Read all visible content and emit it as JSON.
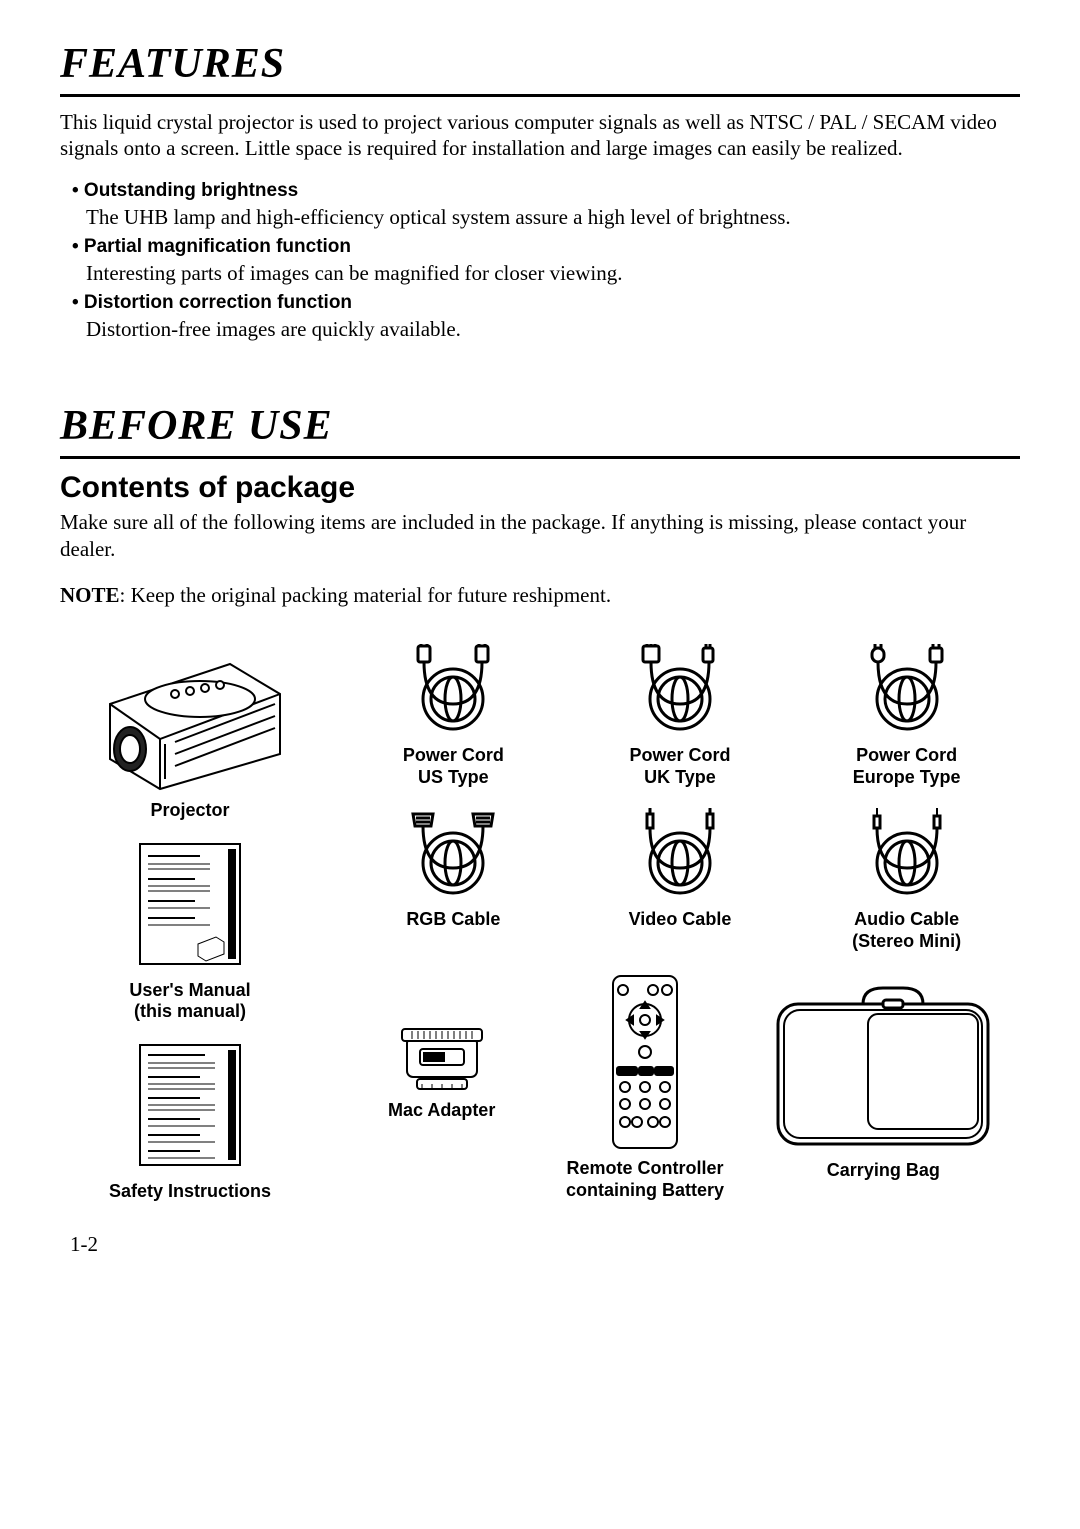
{
  "features": {
    "heading": "FEATURES",
    "intro": "This liquid crystal projector is used to project various computer signals as well as NTSC / PAL / SECAM video signals onto a screen. Little space is required for installation and large images can easily be realized.",
    "items": [
      {
        "title": "• Outstanding brightness",
        "desc": "The UHB lamp and high-efficiency optical system assure a high level of brightness."
      },
      {
        "title": "• Partial magnification function",
        "desc": "Interesting parts of images can be magnified for closer viewing."
      },
      {
        "title": "• Distortion correction function",
        "desc": "Distortion-free images are quickly available."
      }
    ]
  },
  "before_use": {
    "heading": "BEFORE USE",
    "subheading": "Contents of package",
    "contents_text": "Make sure all of the following items are included in the package. If anything is missing, please contact your dealer.",
    "note_label": "NOTE",
    "note_text": ": Keep the original packing material for future reshipment."
  },
  "package": {
    "projector": "Projector",
    "users_manual": "User's Manual\n(this manual)",
    "safety": "Safety Instructions",
    "power_us": "Power Cord\nUS Type",
    "power_uk": "Power Cord\nUK Type",
    "power_eu": "Power Cord\nEurope Type",
    "rgb": "RGB Cable",
    "video": "Video Cable",
    "audio": "Audio Cable\n(Stereo Mini)",
    "mac": "Mac Adapter",
    "remote": "Remote Controller\ncontaining Battery",
    "bag": "Carrying Bag"
  },
  "page_number": "1-2",
  "colors": {
    "text": "#000000",
    "bg": "#ffffff"
  }
}
